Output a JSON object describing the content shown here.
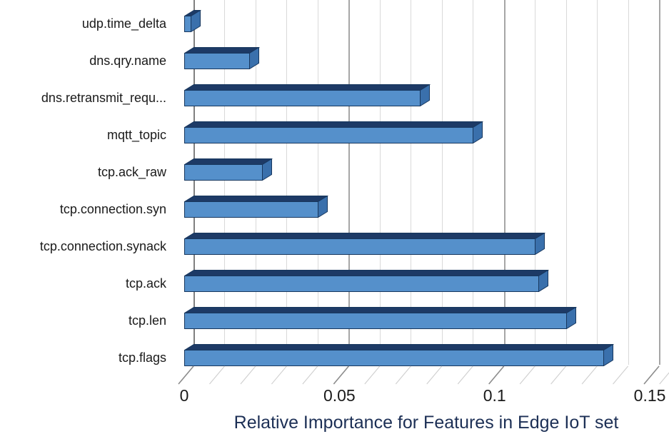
{
  "chart_data": {
    "type": "bar",
    "orientation": "horizontal",
    "style": "3d",
    "title": "",
    "xlabel": "Relative Importance for Features in Edge IoT set",
    "ylabel": "",
    "categories": [
      "udp.time_delta",
      "dns.qry.name",
      "dns.retransmit_requ...",
      "mqtt_topic",
      "tcp.ack_raw",
      "tcp.connection.syn",
      "tcp.connection.synack",
      "tcp.ack",
      "tcp.len",
      "tcp.flags"
    ],
    "values": [
      0.002,
      0.021,
      0.076,
      0.093,
      0.025,
      0.043,
      0.113,
      0.114,
      0.123,
      0.135
    ],
    "xlim": [
      0,
      0.155
    ],
    "xticks": [
      0,
      0.05,
      0.1,
      0.15
    ],
    "xtick_labels": [
      "0",
      "0.05",
      "0.1",
      "0.15"
    ],
    "grid": true,
    "grid_step": 0.01,
    "major_step": 0.05,
    "legend": false,
    "colors": {
      "bar_face": "#5590CB",
      "bar_top": "#1D3A66",
      "bar_end": "#3A70AC",
      "bar_outline": "#17375E",
      "grid_minor": "#D9D9D9",
      "grid_major": "#A6A6A6",
      "grid_zero": "#7F7F7F",
      "tick_minor": "#CFCFCF",
      "tick_major": "#8C8C8C",
      "tick_label": "#1A1A1A",
      "axis_title": "#1C2F55",
      "background": "#FFFFFF"
    }
  }
}
